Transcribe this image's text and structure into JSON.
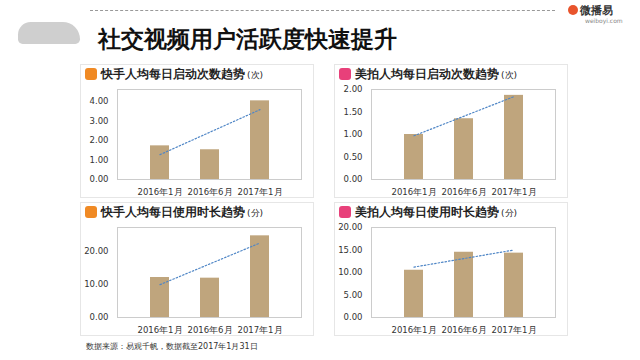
{
  "title": "社交视频用户活跃度快速提升",
  "brand": "微播易",
  "brand_url": "weiboyi.com",
  "source": "数据来源：易观千帆，数据截至2017年1月31日",
  "chart_data": [
    {
      "type": "bar",
      "title": "快手人均每日启动次数趋势",
      "ylabel": "(次)",
      "categories": [
        "2016年1月",
        "2016年6月",
        "2017年1月"
      ],
      "values": [
        1.72,
        1.52,
        4.02
      ],
      "color": "#bfa57d",
      "line_style": "dotted",
      "ylim": [
        0,
        4.6
      ],
      "yticks": [
        {
          "value": 0,
          "label": "0.00"
        },
        {
          "value": 1,
          "label": "1.00"
        },
        {
          "value": 2,
          "label": "2.00"
        },
        {
          "value": 3,
          "label": "3.00"
        },
        {
          "value": 4,
          "label": "4.00"
        }
      ],
      "grid": false
    },
    {
      "type": "bar",
      "title": "美拍人均每日启动次数趋势",
      "ylabel": "(次)",
      "categories": [
        "2016年1月",
        "2016年6月",
        "2017年1月"
      ],
      "values": [
        1.0,
        1.35,
        1.87
      ],
      "color": "#bfa57d",
      "line_style": "dotted",
      "ylim": [
        0,
        2
      ],
      "yticks": [
        {
          "value": 0,
          "label": "0.00"
        },
        {
          "value": 0.5,
          "label": "0.50"
        },
        {
          "value": 1,
          "label": "1.00"
        },
        {
          "value": 1.5,
          "label": "1.50"
        },
        {
          "value": 2,
          "label": "2.00"
        }
      ],
      "grid": false
    },
    {
      "type": "bar",
      "title": "快手人均每日使用时长趋势",
      "ylabel": "(分)",
      "categories": [
        "2016年1月",
        "2016年6月",
        "2017年1月"
      ],
      "values": [
        12.0,
        11.8,
        24.5
      ],
      "color": "#bfa57d",
      "line_style": "dotted",
      "ylim": [
        0,
        27
      ],
      "yticks": [
        {
          "value": 0,
          "label": "0.00"
        },
        {
          "value": 10,
          "label": "10.00"
        },
        {
          "value": 20,
          "label": "20.00"
        }
      ],
      "grid": false
    },
    {
      "type": "bar",
      "title": "美拍人均每日使用时长趋势",
      "ylabel": "(分)",
      "categories": [
        "2016年1月",
        "2016年6月",
        "2017年1月"
      ],
      "values": [
        10.5,
        14.5,
        14.3
      ],
      "color": "#bfa57d",
      "line_style": "dotted",
      "ylim": [
        0,
        20
      ],
      "yticks": [
        {
          "value": 0,
          "label": "0.00"
        },
        {
          "value": 5,
          "label": "5.00"
        },
        {
          "value": 10,
          "label": "10.00"
        },
        {
          "value": 15,
          "label": "15.00"
        },
        {
          "value": 20,
          "label": "20.00"
        }
      ],
      "grid": false
    }
  ]
}
